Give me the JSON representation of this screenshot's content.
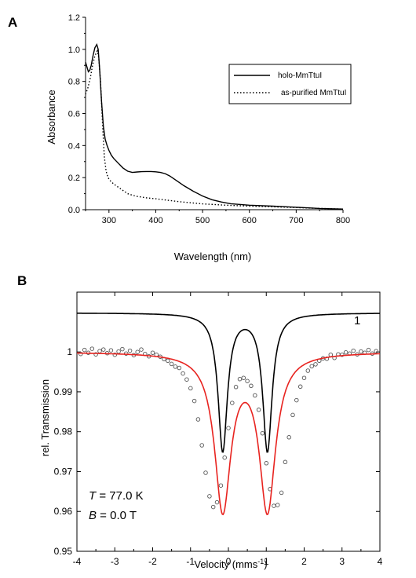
{
  "chart_data": [
    {
      "panel": "A",
      "type": "line",
      "title": "",
      "xlabel": "Wavelength (nm)",
      "ylabel": "Absorbance",
      "xlim": [
        250,
        800
      ],
      "ylim": [
        0.0,
        1.2
      ],
      "xticks": [
        300,
        400,
        500,
        600,
        700,
        800
      ],
      "yticks": [
        0.0,
        0.2,
        0.4,
        0.6,
        0.8,
        1.0,
        1.2
      ],
      "ytick_labels": [
        "0.0",
        "0.2",
        "0.4",
        "0.6",
        "0.8",
        "1.0",
        "1.2"
      ],
      "legend_position": "top-right",
      "series": [
        {
          "name": "holo-MmTtuI",
          "style": "solid",
          "x": [
            250,
            253,
            256,
            259,
            262,
            266,
            270,
            274,
            277,
            280,
            284,
            288,
            292,
            296,
            300,
            305,
            310,
            320,
            330,
            340,
            350,
            360,
            370,
            380,
            390,
            400,
            410,
            420,
            430,
            440,
            450,
            460,
            480,
            500,
            520,
            540,
            560,
            600,
            650,
            700,
            750,
            800
          ],
          "y": [
            0.92,
            0.89,
            0.86,
            0.87,
            0.9,
            0.96,
            1.01,
            1.03,
            1.0,
            0.88,
            0.68,
            0.52,
            0.44,
            0.4,
            0.37,
            0.34,
            0.32,
            0.29,
            0.26,
            0.24,
            0.232,
            0.235,
            0.237,
            0.238,
            0.238,
            0.236,
            0.232,
            0.225,
            0.21,
            0.19,
            0.17,
            0.15,
            0.115,
            0.085,
            0.062,
            0.048,
            0.037,
            0.028,
            0.022,
            0.015,
            0.008,
            0.004
          ]
        },
        {
          "name": "as-purified MmTtuI",
          "style": "dotted",
          "x": [
            250,
            255,
            260,
            265,
            270,
            275,
            278,
            282,
            286,
            290,
            294,
            298,
            303,
            310,
            320,
            330,
            340,
            350,
            360,
            380,
            400,
            450,
            500,
            550,
            600,
            650,
            700,
            750,
            800
          ],
          "y": [
            0.72,
            0.76,
            0.82,
            0.9,
            0.96,
            0.99,
            0.95,
            0.8,
            0.55,
            0.33,
            0.24,
            0.2,
            0.18,
            0.16,
            0.14,
            0.12,
            0.1,
            0.09,
            0.083,
            0.074,
            0.068,
            0.05,
            0.036,
            0.028,
            0.022,
            0.018,
            0.013,
            0.008,
            0.004
          ]
        }
      ]
    },
    {
      "panel": "B",
      "type": "scatter",
      "title": "",
      "xlabel": "Velocity (mms-1)",
      "ylabel": "rel. Transmission",
      "xlim": [
        -4,
        4
      ],
      "ylim": [
        0.95,
        1.015
      ],
      "xticks": [
        -4,
        -3,
        -2,
        -1,
        0,
        1,
        2,
        3,
        4
      ],
      "yticks": [
        0.95,
        0.96,
        0.97,
        0.98,
        0.99,
        1.0
      ],
      "ytick_labels": [
        "0.95",
        "0.96",
        "0.97",
        "0.98",
        "0.99",
        "1"
      ],
      "series": [
        {
          "name": "",
          "kind": "data points (open circles)",
          "values_note": "quadrupole doublet, baseline 1.0",
          "x": [
            -3.9,
            -3.8,
            -3.7,
            -3.6,
            -3.5,
            -3.4,
            -3.3,
            -3.2,
            -3.1,
            -3.0,
            -2.9,
            -2.8,
            -2.7,
            -2.6,
            -2.5,
            -2.4,
            -2.3,
            -2.2,
            -2.1,
            -2.0,
            -1.9,
            -1.8,
            -1.7,
            -1.6,
            -1.5,
            -1.4,
            -1.3,
            -1.2,
            -1.1,
            -1.0,
            -0.9,
            -0.8,
            -0.7,
            -0.6,
            -0.5,
            -0.4,
            -0.3,
            -0.2,
            -0.1,
            0.0,
            0.1,
            0.2,
            0.3,
            0.4,
            0.5,
            0.6,
            0.7,
            0.8,
            0.9,
            1.0,
            1.1,
            1.2,
            1.3,
            1.4,
            1.5,
            1.6,
            1.7,
            1.8,
            1.9,
            2.0,
            2.1,
            2.2,
            2.3,
            2.4,
            2.5,
            2.6,
            2.7,
            2.8,
            2.9,
            3.0,
            3.1,
            3.2,
            3.3,
            3.4,
            3.5,
            3.6,
            3.7,
            3.8,
            3.9
          ],
          "y": [
            0.9995,
            1.0005,
            0.9998,
            1.0008,
            0.9994,
            1.0002,
            1.0006,
            0.9997,
            1.0004,
            0.9993,
            1.0001,
            1.0007,
            0.9996,
            1.0003,
            0.9992,
            1.0,
            1.0006,
            0.9995,
            0.9989,
            0.9998,
            0.9993,
            0.9988,
            0.9982,
            0.9978,
            0.997,
            0.9963,
            0.996,
            0.9946,
            0.9931,
            0.9909,
            0.9877,
            0.9831,
            0.9766,
            0.9697,
            0.9638,
            0.9611,
            0.9623,
            0.9665,
            0.9735,
            0.9809,
            0.9872,
            0.9912,
            0.9932,
            0.9935,
            0.9927,
            0.9915,
            0.9891,
            0.9855,
            0.9796,
            0.9721,
            0.9656,
            0.9614,
            0.9616,
            0.9647,
            0.9724,
            0.9786,
            0.9842,
            0.9879,
            0.9913,
            0.9935,
            0.9953,
            0.9964,
            0.9969,
            0.9978,
            0.9984,
            0.9983,
            0.9993,
            0.9985,
            0.9994,
            0.9993,
            0.9999,
            0.9996,
            1.0003,
            0.9994,
            1.0001,
            0.9998,
            1.0005,
            0.9996,
            1.0002
          ]
        },
        {
          "name": "",
          "kind": "fit (red)",
          "shape": "lorentzian-doublet",
          "baseline": 1.0,
          "centers": [
            -0.15,
            1.03
          ],
          "depth": 0.039,
          "halfwidth": 0.26,
          "color": "#e8231f"
        },
        {
          "name": "1",
          "kind": "subspectrum (black, offset)",
          "shape": "lorentzian-doublet",
          "baseline": 1.0098,
          "centers": [
            -0.15,
            1.03
          ],
          "depth": 0.0345,
          "halfwidth": 0.15,
          "color": "#000000"
        }
      ],
      "annotations": {
        "T_symbol": "T",
        "T_value": " = 77.0 K",
        "B_symbol": "B",
        "B_value": " = 0.0 T",
        "subspectrum_label": "1"
      }
    }
  ],
  "labels": {
    "panel_a": "A",
    "panel_b": "B",
    "legend_a_1": "holo-MmTtuI",
    "legend_a_2": "as-purified MmTtuI",
    "xlabel_a": "Wavelength (nm)",
    "ylabel_a": "Absorbance",
    "xlabel_b_main": "Velocity (mms",
    "xlabel_b_sup": "-1",
    "xlabel_b_end": ")",
    "ylabel_b": "rel. Transmission"
  },
  "colors": {
    "fit": "#e8231f",
    "ink": "#000000",
    "markers": "#555555"
  }
}
